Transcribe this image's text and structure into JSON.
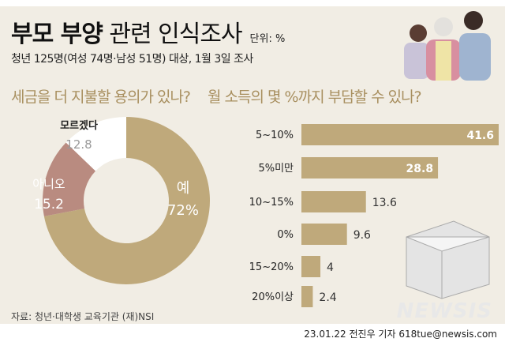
{
  "header": {
    "title_bold": "부모 부양",
    "title_rest": "관련 인식조사",
    "unit": "단위: %",
    "subtitle": "청년 125명(여성 74명·남성 51명) 대상, 1월 3일 조사"
  },
  "footer": {
    "source": "자료: 청년·대학생 교육기관 (재)NSI",
    "credit": "23.01.22 전진우 기자 618tue@newsis.com",
    "logo": "NEWSIS"
  },
  "colors": {
    "gold": "#bfa97b",
    "rose": "#b98b80",
    "white": "#ffffff",
    "bg": "#f1ede4"
  },
  "chart_data": [
    {
      "type": "pie",
      "title": "세금을 더 지불할 용의가 있나?",
      "categories": [
        "예",
        "아니오",
        "모르겠다"
      ],
      "values": [
        72,
        15.2,
        12.8
      ],
      "labels": [
        "72%",
        "15.2",
        "12.8"
      ]
    },
    {
      "type": "bar",
      "title": "월 소득의 몇 %까지 부담할 수 있나?",
      "categories": [
        "5~10%",
        "5%미만",
        "10~15%",
        "0%",
        "15~20%",
        "20%이상"
      ],
      "values": [
        41.6,
        28.8,
        13.6,
        9.6,
        4,
        2.4
      ],
      "labels": [
        "41.6",
        "28.8",
        "13.6",
        "9.6",
        "4",
        "2.4"
      ]
    }
  ]
}
